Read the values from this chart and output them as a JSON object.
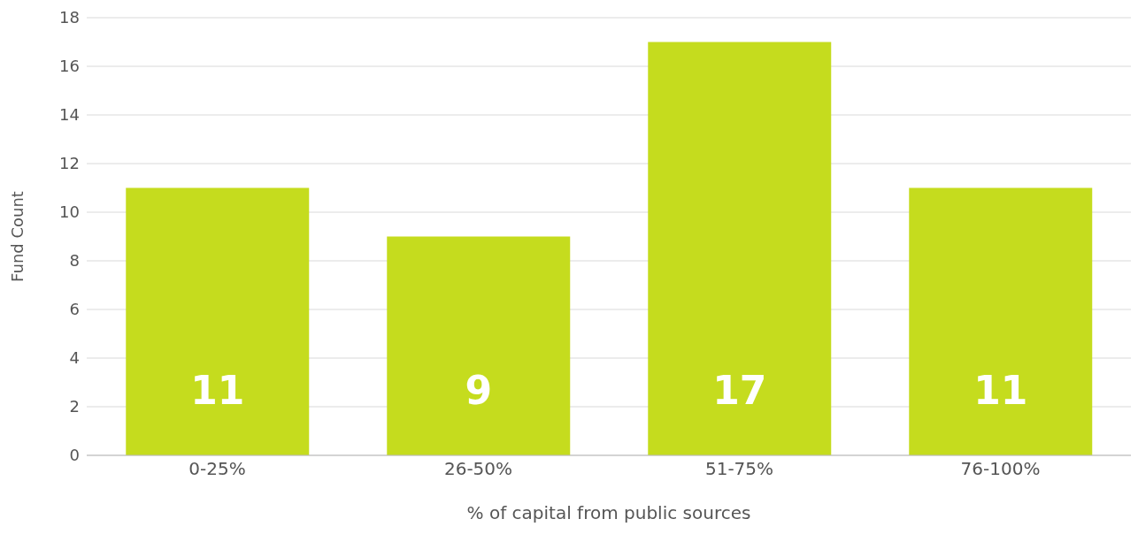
{
  "chart_data": {
    "type": "bar",
    "xlabel": "% of capital from public sources",
    "ylabel": "Fund Count",
    "categories": [
      "0-25%",
      "26-50%",
      "51-75%",
      "76-100%"
    ],
    "values": [
      11,
      9,
      17,
      11
    ],
    "color": "#c5dc1e",
    "ylim": [
      0,
      18
    ],
    "yticks": [
      0,
      2,
      4,
      6,
      8,
      10,
      12,
      14,
      16,
      18
    ],
    "grid": "y",
    "data_labels": true
  }
}
